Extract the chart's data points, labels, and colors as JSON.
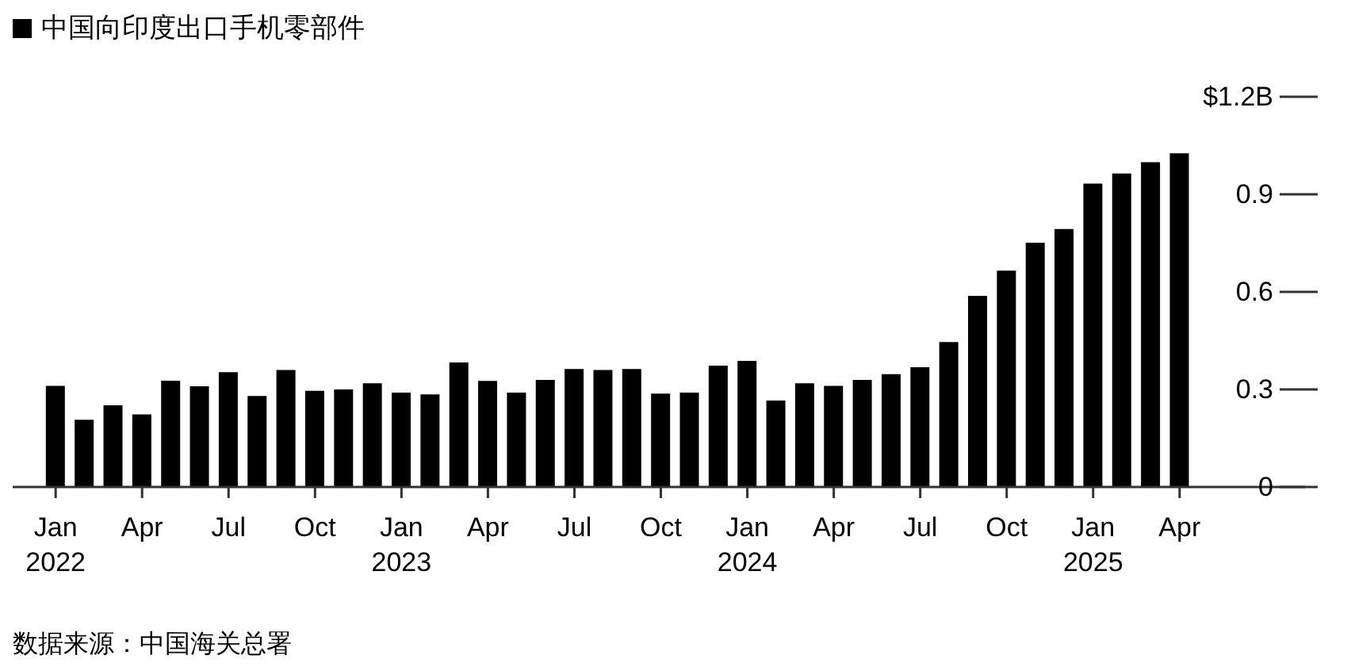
{
  "chart_data": {
    "type": "bar",
    "categories": [
      "Jan\n2022",
      null,
      null,
      "Apr",
      null,
      null,
      "Jul",
      null,
      null,
      "Oct",
      null,
      null,
      "Jan\n2023",
      null,
      null,
      "Apr",
      null,
      null,
      "Jul",
      null,
      null,
      "Oct",
      null,
      null,
      "Jan\n2024",
      null,
      null,
      "Apr",
      null,
      null,
      "Jul",
      null,
      null,
      "Oct",
      null,
      null,
      "Jan\n2025",
      null,
      null,
      "Apr"
    ],
    "series": [
      {
        "name": "中国向印度出口手机零部件",
        "color": "#000000",
        "values": [
          0.311,
          0.207,
          0.251,
          0.223,
          0.327,
          0.31,
          0.353,
          0.28,
          0.36,
          0.296,
          0.3,
          0.319,
          0.29,
          0.285,
          0.383,
          0.326,
          0.29,
          0.329,
          0.363,
          0.36,
          0.363,
          0.287,
          0.29,
          0.373,
          0.388,
          0.266,
          0.319,
          0.311,
          0.329,
          0.347,
          0.368,
          0.446,
          0.588,
          0.665,
          0.751,
          0.793,
          0.933,
          0.964,
          0.999,
          1.026
        ]
      }
    ],
    "ylim": [
      0,
      1.2
    ],
    "yticks": [
      0,
      0.3,
      0.6,
      0.9,
      {
        "value": 1.2,
        "label": "$1.2B"
      }
    ],
    "legend": "top left",
    "annotations": [
      "数据来源：中国海关总署"
    ]
  }
}
